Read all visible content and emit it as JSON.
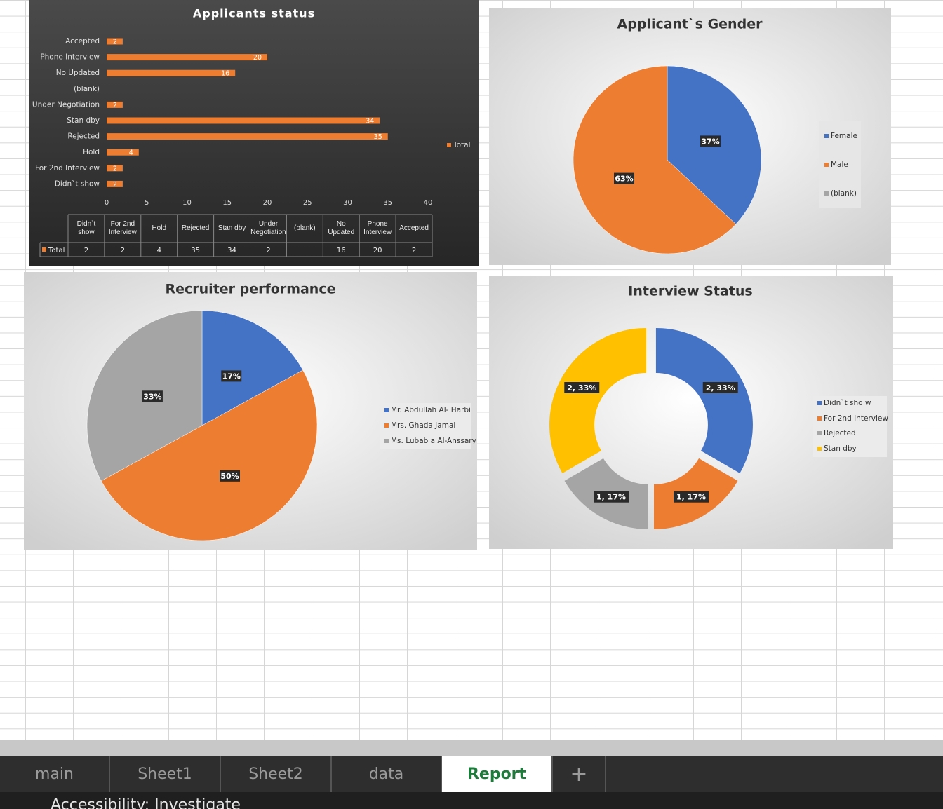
{
  "chart_data": [
    {
      "type": "bar",
      "orientation": "horizontal",
      "title": "Applicants status",
      "categories": [
        "Accepted",
        "Phone Interview",
        "No Updated",
        "(blank)",
        "Under Negotiation",
        "Stan dby",
        "Rejected",
        "Hold",
        "For 2nd Interview",
        "Didn`t show"
      ],
      "series": [
        {
          "name": "Total",
          "color": "#ed7d31",
          "values": [
            2,
            20,
            16,
            null,
            2,
            34,
            35,
            4,
            2,
            2
          ]
        }
      ],
      "xlim": [
        0,
        40
      ],
      "xticks": [
        0,
        5,
        10,
        15,
        20,
        25,
        30,
        35,
        40
      ],
      "grid": false,
      "legend": "right",
      "data_table": true
    },
    {
      "type": "pie",
      "title": "Applicant`s Gender",
      "categories": [
        "Female",
        "Male",
        "(blank)"
      ],
      "values": [
        37,
        63,
        null
      ],
      "value_labels": [
        "37%",
        "63%",
        null
      ],
      "colors": [
        "#4472c4",
        "#ed7d31",
        "#a5a5a5"
      ],
      "legend": "right"
    },
    {
      "type": "pie",
      "title": "Recruiter performance",
      "categories": [
        "Mr. Abdullah Al- Harbi",
        "Mrs. Ghada Jamal",
        "Ms. Lubab a Al-Anssary"
      ],
      "values": [
        17,
        50,
        33
      ],
      "value_labels": [
        "17%",
        "50%",
        "33%"
      ],
      "colors": [
        "#4472c4",
        "#ed7d31",
        "#a5a5a5"
      ],
      "legend": "right"
    },
    {
      "type": "doughnut",
      "title": "Interview Status",
      "categories": [
        "Didn`t sho w",
        "For 2nd Interview",
        "Rejected",
        "Stan dby"
      ],
      "values": [
        2,
        1,
        1,
        2
      ],
      "value_labels": [
        "2, 33%",
        "1, 17%",
        "1, 17%",
        "2, 33%"
      ],
      "colors": [
        "#4472c4",
        "#ed7d31",
        "#a5a5a5",
        "#ffc000"
      ],
      "legend": "right"
    }
  ],
  "sheet_tabs": [
    "main",
    "Sheet1",
    "Sheet2",
    "data",
    "Report"
  ],
  "add_tab": "+",
  "status_bar": "Accessibility: Investigate"
}
